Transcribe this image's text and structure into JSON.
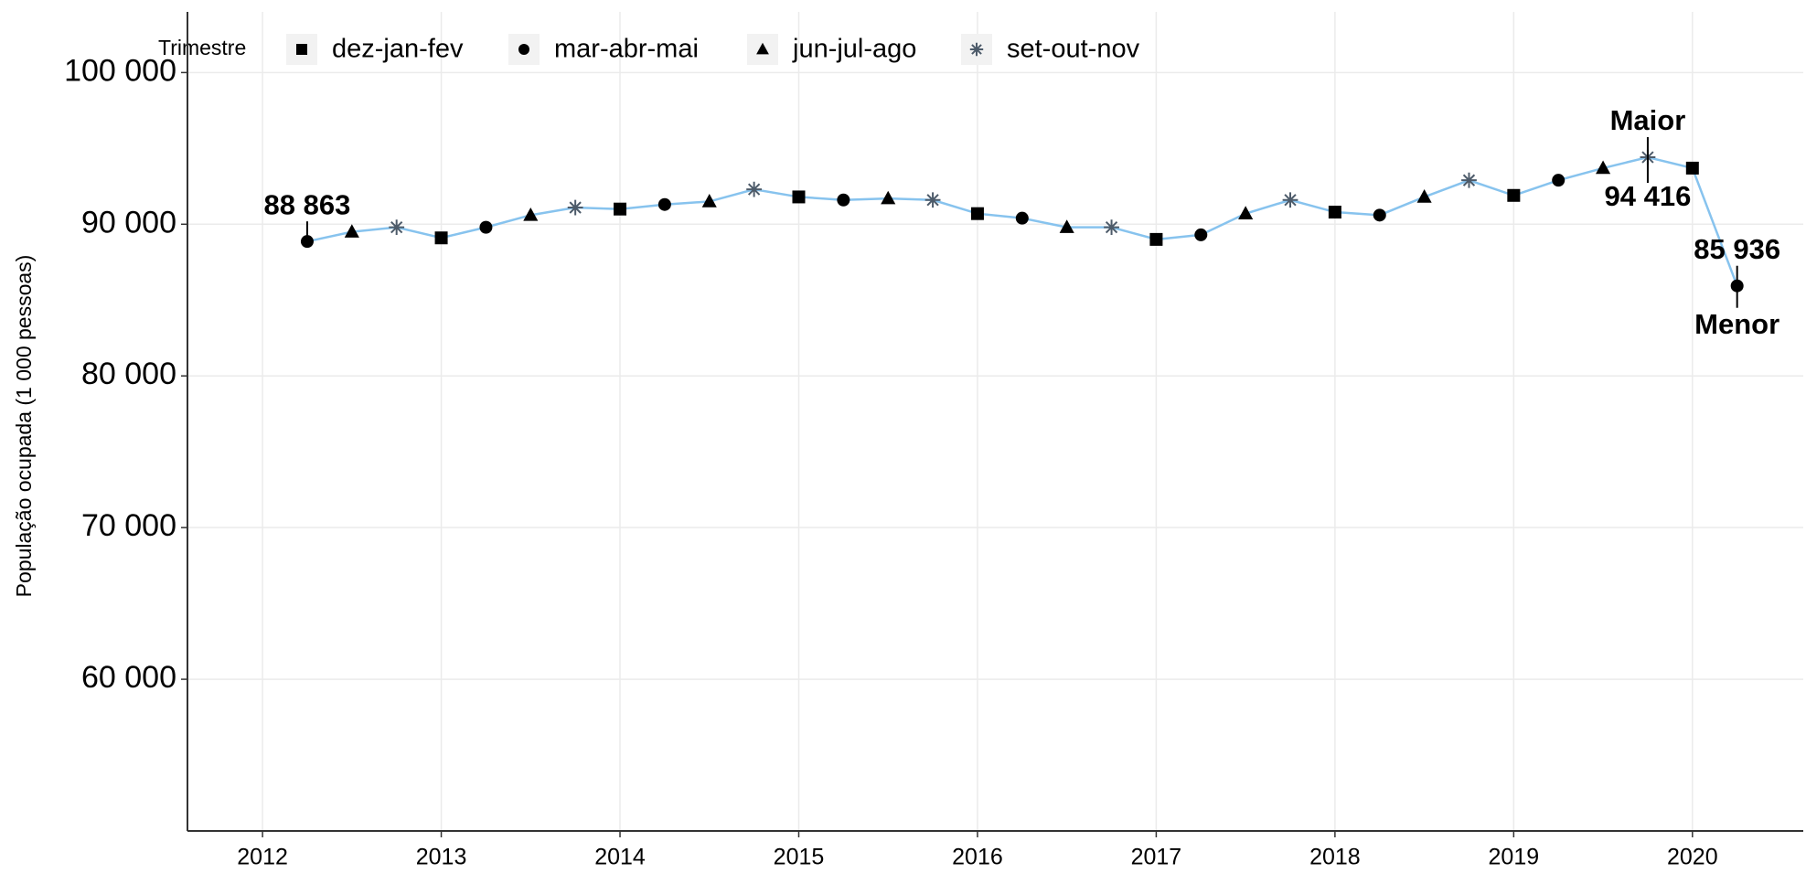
{
  "chart_data": {
    "type": "line",
    "y_label": "População ocupada (1 000 pessoas)",
    "legend_title": "Trimestre",
    "legend": "top-left",
    "line_color": "#87c3ee",
    "grid": true,
    "xlim": [
      2011.58,
      2020.62
    ],
    "ylim": [
      50000,
      104000
    ],
    "xticks": [
      2012,
      2013,
      2014,
      2015,
      2016,
      2017,
      2018,
      2019,
      2020
    ],
    "yticks": [
      {
        "value": 60000,
        "label": "60 000"
      },
      {
        "value": 70000,
        "label": "70 000"
      },
      {
        "value": 80000,
        "label": "80 000"
      },
      {
        "value": 90000,
        "label": "90 000"
      },
      {
        "value": 100000,
        "label": "100 000"
      }
    ],
    "annotations": [
      "Maior",
      "Menor"
    ],
    "series": [
      {
        "name": "dez-jan-fev",
        "marker": "square",
        "color": "#000000",
        "x": [
          2013,
          2014,
          2015,
          2016,
          2017,
          2018,
          2019,
          2020
        ],
        "values": [
          89100,
          91000,
          91800,
          90700,
          89000,
          90800,
          91900,
          93700
        ]
      },
      {
        "name": "mar-abr-mai",
        "marker": "circle",
        "color": "#000000",
        "x": [
          2012.25,
          2013.25,
          2014.25,
          2015.25,
          2016.25,
          2017.25,
          2018.25,
          2019.25,
          2020.25
        ],
        "values": [
          88863,
          89800,
          91300,
          91600,
          90400,
          89300,
          90600,
          92900,
          85936
        ],
        "value_labels": [
          "88 863",
          null,
          null,
          null,
          null,
          null,
          null,
          null,
          "85 936"
        ]
      },
      {
        "name": "jun-jul-ago",
        "marker": "triangle",
        "color": "#000000",
        "x": [
          2012.5,
          2013.5,
          2014.5,
          2015.5,
          2016.5,
          2017.5,
          2018.5,
          2019.5
        ],
        "values": [
          89500,
          90600,
          91500,
          91700,
          89800,
          90700,
          91800,
          93700
        ]
      },
      {
        "name": "set-out-nov",
        "marker": "asterisk",
        "color": "#4d5b6a",
        "x": [
          2012.75,
          2013.75,
          2014.75,
          2015.75,
          2016.75,
          2017.75,
          2018.75,
          2019.75
        ],
        "values": [
          89800,
          91100,
          92300,
          91600,
          89800,
          91600,
          92900,
          94416
        ],
        "value_labels": [
          null,
          null,
          null,
          null,
          null,
          null,
          null,
          "94 416"
        ]
      }
    ]
  }
}
